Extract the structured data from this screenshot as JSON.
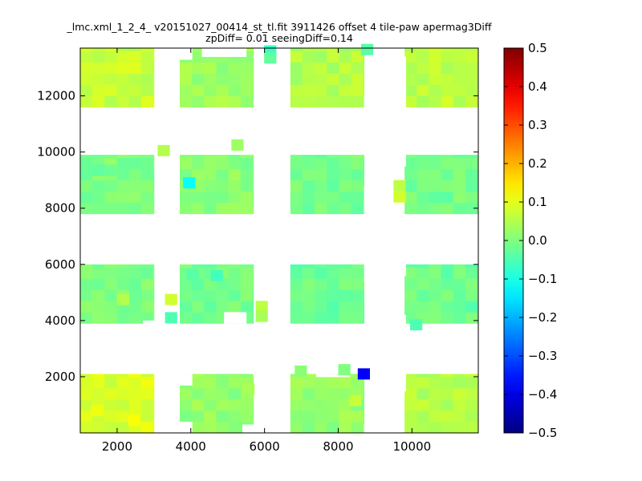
{
  "chart_data": {
    "type": "heatmap",
    "title_lines": [
      "_lmc.xml_1_2_4_ v20151027_00414_st_tl.fit 3911426 offset 4 tile-paw apermag3Diff",
      "zpDiff= 0.01 seeingDiff=0.14"
    ],
    "xlabel": "",
    "ylabel": "",
    "xlim": [
      1000,
      11800
    ],
    "ylim": [
      0,
      13700
    ],
    "x_ticks": [
      2000,
      4000,
      6000,
      8000,
      10000
    ],
    "x_tick_labels": [
      "2000",
      "4000",
      "6000",
      "8000",
      "10000"
    ],
    "y_ticks": [
      2000,
      4000,
      6000,
      8000,
      10000,
      12000
    ],
    "y_tick_labels": [
      "2000",
      "4000",
      "6000",
      "8000",
      "10000",
      "12000"
    ],
    "colorbar": {
      "colormap": "jet",
      "min": -0.5,
      "max": 0.5,
      "ticks": [
        -0.5,
        -0.4,
        -0.3,
        -0.2,
        -0.1,
        0.0,
        0.1,
        0.2,
        0.3,
        0.4,
        0.5
      ],
      "tick_labels": [
        "−0.5",
        "−0.4",
        "−0.3",
        "−0.2",
        "−0.1",
        "0.0",
        "0.1",
        "0.2",
        "0.3",
        "0.4",
        "0.5"
      ]
    },
    "cell_size": [
      330,
      400
    ],
    "columns": [
      {
        "name": "col-1",
        "x_edges": [
          1000,
          3000
        ]
      },
      {
        "name": "col-2",
        "x_edges": [
          3700,
          5700
        ]
      },
      {
        "name": "col-3",
        "x_edges": [
          6700,
          8700
        ]
      },
      {
        "name": "col-4",
        "x_edges": [
          9800,
          11800
        ]
      }
    ],
    "rows": [
      {
        "name": "row-1",
        "y_edges": [
          0,
          2100
        ]
      },
      {
        "name": "row-2",
        "y_edges": [
          3900,
          6000
        ]
      },
      {
        "name": "row-3",
        "y_edges": [
          7800,
          9900
        ]
      },
      {
        "name": "row-4",
        "y_edges": [
          11600,
          13700
        ]
      }
    ],
    "panel_base_values": [
      [
        0.09,
        0.02,
        0.02,
        0.05
      ],
      [
        0.0,
        -0.01,
        -0.02,
        -0.02
      ],
      [
        0.0,
        0.01,
        -0.01,
        -0.01
      ],
      [
        0.07,
        0.03,
        0.05,
        0.06
      ]
    ],
    "cells": [
      {
        "x": 8530,
        "y": 1900,
        "value": -0.38
      },
      {
        "x": 3790,
        "y": 8700,
        "value": -0.12
      },
      {
        "x": 3300,
        "y": 3900,
        "value": -0.05
      },
      {
        "x": 3300,
        "y": 4550,
        "value": 0.08
      },
      {
        "x": 3100,
        "y": 9850,
        "value": 0.05
      },
      {
        "x": 5100,
        "y": 10050,
        "value": 0.03
      },
      {
        "x": 9500,
        "y": 8200,
        "value": 0.08
      },
      {
        "x": 9500,
        "y": 8600,
        "value": 0.06
      },
      {
        "x": 9950,
        "y": 3650,
        "value": -0.05
      },
      {
        "x": 6820,
        "y": 2000,
        "value": 0.01
      },
      {
        "x": 3880,
        "y": 5450,
        "value": -0.04
      },
      {
        "x": 4540,
        "y": 5400,
        "value": -0.06
      },
      {
        "x": 5990,
        "y": 13400,
        "value": -0.07
      },
      {
        "x": 5990,
        "y": 13150,
        "value": -0.03
      },
      {
        "x": 8620,
        "y": 13450,
        "value": -0.04
      },
      {
        "x": 1310,
        "y": 9150,
        "value": -0.03
      },
      {
        "x": 1640,
        "y": 9150,
        "value": -0.02
      },
      {
        "x": 5760,
        "y": 4300,
        "value": 0.06
      },
      {
        "x": 5760,
        "y": 3950,
        "value": 0.04
      },
      {
        "x": 2000,
        "y": 4550,
        "value": 0.05
      },
      {
        "x": 8300,
        "y": 950,
        "value": 0.07
      },
      {
        "x": 8000,
        "y": 2050,
        "value": 0.0
      },
      {
        "x": 5400,
        "y": 1350,
        "value": 0.04
      },
      {
        "x": 2300,
        "y": 250,
        "value": 0.12
      },
      {
        "x": 1300,
        "y": 600,
        "value": 0.11
      }
    ]
  }
}
